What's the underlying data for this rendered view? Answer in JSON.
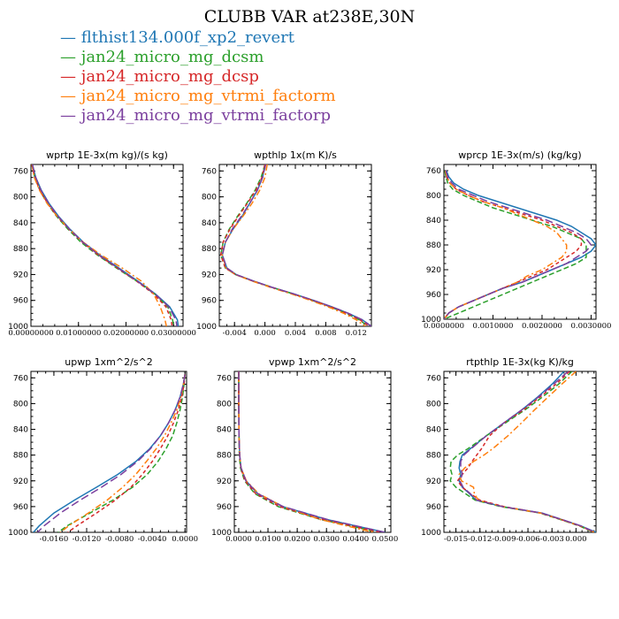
{
  "title": "CLUBB VAR at238E,30N",
  "series": [
    {
      "name": "flthist134.000f_xp2_revert",
      "color": "#1f77b4",
      "dash": ""
    },
    {
      "name": "jan24_micro_mg_dcsm",
      "color": "#2ca02c",
      "dash": "6,3"
    },
    {
      "name": "jan24_micro_mg_dcsp",
      "color": "#d62728",
      "dash": "4,3"
    },
    {
      "name": "jan24_micro_mg_vtrmi_factorm",
      "color": "#ff7f0e",
      "dash": "7,3,2,3"
    },
    {
      "name": "jan24_micro_mg_vtrmi_factorp",
      "color": "#7b3f9e",
      "dash": "9,4"
    }
  ],
  "chart_data": [
    {
      "type": "line",
      "title": "wprtp  1E-3x(m kg)/(s kg)",
      "ylabel": "",
      "xlabel": "",
      "ylim": [
        1000,
        750
      ],
      "xlim": [
        0,
        0.032
      ],
      "yticks": [
        760,
        800,
        840,
        880,
        920,
        960,
        1000
      ],
      "xticks": [
        0,
        0.01,
        0.02,
        0.03
      ],
      "xticklabels": [
        "0.00000000",
        "0.01000000",
        "0.02000000",
        "0.03000000"
      ],
      "y": [
        750,
        770,
        790,
        810,
        830,
        850,
        870,
        890,
        910,
        930,
        950,
        970,
        990,
        1000
      ],
      "series": [
        [
          0.0003,
          0.001,
          0.0022,
          0.0038,
          0.0058,
          0.0082,
          0.011,
          0.0145,
          0.0185,
          0.0225,
          0.0262,
          0.0292,
          0.0308,
          0.031
        ],
        [
          0.0002,
          0.0008,
          0.0019,
          0.0034,
          0.0054,
          0.0078,
          0.0105,
          0.014,
          0.018,
          0.0222,
          0.026,
          0.0288,
          0.0298,
          0.03
        ],
        [
          0.0002,
          0.0008,
          0.0019,
          0.0035,
          0.0055,
          0.008,
          0.0108,
          0.0142,
          0.0182,
          0.0222,
          0.0258,
          0.0284,
          0.0295,
          0.0297
        ],
        [
          0.0002,
          0.0007,
          0.0018,
          0.0034,
          0.0055,
          0.0081,
          0.011,
          0.0148,
          0.0192,
          0.0232,
          0.0258,
          0.0272,
          0.0282,
          0.0285
        ],
        [
          0.0003,
          0.001,
          0.0021,
          0.0037,
          0.0057,
          0.0081,
          0.0109,
          0.0143,
          0.0183,
          0.0223,
          0.0261,
          0.029,
          0.0305,
          0.0307
        ]
      ]
    },
    {
      "type": "line",
      "title": "wpthlp  1x(m K)/s",
      "ylabel": "",
      "xlabel": "",
      "ylim": [
        1000,
        750
      ],
      "xlim": [
        -0.006,
        0.014
      ],
      "yticks": [
        760,
        800,
        840,
        880,
        920,
        960,
        1000
      ],
      "xticks": [
        -0.004,
        0,
        0.004,
        0.008,
        0.012
      ],
      "xticklabels": [
        "-0.004",
        "0.000",
        "0.004",
        "0.008",
        "0.012"
      ],
      "y": [
        750,
        770,
        790,
        810,
        830,
        850,
        870,
        890,
        910,
        920,
        930,
        940,
        950,
        960,
        970,
        980,
        990,
        1000
      ],
      "series": [
        [
          0.0,
          -0.0003,
          -0.001,
          -0.002,
          -0.003,
          -0.0042,
          -0.0052,
          -0.0056,
          -0.005,
          -0.0038,
          -0.0015,
          0.001,
          0.0038,
          0.0064,
          0.0088,
          0.011,
          0.0128,
          0.014
        ],
        [
          0.0,
          -0.0005,
          -0.0013,
          -0.0024,
          -0.0036,
          -0.0047,
          -0.0055,
          -0.0058,
          -0.0052,
          -0.0039,
          -0.0016,
          0.001,
          0.0037,
          0.0062,
          0.0086,
          0.0107,
          0.0124,
          0.0136
        ],
        [
          0.0,
          -0.0004,
          -0.0012,
          -0.0023,
          -0.0035,
          -0.0046,
          -0.0055,
          -0.0058,
          -0.0052,
          -0.0039,
          -0.0016,
          0.001,
          0.0037,
          0.0063,
          0.0087,
          0.0108,
          0.0125,
          0.0137
        ],
        [
          0.0003,
          0.0,
          -0.0007,
          -0.0017,
          -0.0029,
          -0.0042,
          -0.0052,
          -0.0056,
          -0.0051,
          -0.0039,
          -0.0017,
          0.0008,
          0.0035,
          0.006,
          0.0083,
          0.0104,
          0.012,
          0.0132
        ],
        [
          0.0001,
          -0.0003,
          -0.001,
          -0.002,
          -0.0031,
          -0.0043,
          -0.0052,
          -0.0056,
          -0.005,
          -0.0038,
          -0.0015,
          0.001,
          0.0038,
          0.0064,
          0.0088,
          0.011,
          0.0128,
          0.014
        ]
      ]
    },
    {
      "type": "line",
      "title": "wprcp  1E-3x(m/s) (kg/kg)",
      "ylabel": "",
      "xlabel": "",
      "ylim": [
        1000,
        750
      ],
      "xlim": [
        0,
        0.0031
      ],
      "yticks": [
        760,
        800,
        840,
        880,
        920,
        960,
        1000
      ],
      "xticks": [
        0,
        0.001,
        0.002,
        0.003
      ],
      "xticklabels": [
        "0.0000000",
        "0.0010000",
        "0.0020000",
        "0.0030000"
      ],
      "y": [
        760,
        770,
        780,
        790,
        800,
        810,
        820,
        830,
        840,
        850,
        860,
        870,
        880,
        890,
        900,
        910,
        920,
        930,
        940,
        950,
        960,
        970,
        980,
        990,
        1000
      ],
      "series": [
        [
          5e-05,
          0.0001,
          0.0002,
          0.0004,
          0.0007,
          0.0011,
          0.0015,
          0.0019,
          0.0023,
          0.0026,
          0.0028,
          0.003,
          0.0031,
          0.003,
          0.0028,
          0.0025,
          0.0022,
          0.0019,
          0.0016,
          0.0012,
          0.0009,
          0.0006,
          0.0003,
          0.0001,
          0.0
        ],
        [
          2e-05,
          4e-05,
          8e-05,
          0.00018,
          0.0004,
          0.0007,
          0.001,
          0.0014,
          0.0018,
          0.0022,
          0.0025,
          0.0028,
          0.0029,
          0.0029,
          0.0029,
          0.0027,
          0.0024,
          0.0021,
          0.0018,
          0.0015,
          0.0012,
          0.0009,
          0.0006,
          0.0003,
          0.0
        ],
        [
          3e-05,
          6e-05,
          0.00012,
          0.00025,
          0.0005,
          0.0008,
          0.0012,
          0.0016,
          0.002,
          0.0023,
          0.0026,
          0.0028,
          0.0028,
          0.0027,
          0.0025,
          0.0023,
          0.0021,
          0.0018,
          0.0015,
          0.0012,
          0.0009,
          0.0006,
          0.0003,
          0.0001,
          0.0
        ],
        [
          3e-05,
          6e-05,
          0.00012,
          0.00025,
          0.0005,
          0.0008,
          0.0012,
          0.0015,
          0.0018,
          0.0021,
          0.0023,
          0.0024,
          0.0025,
          0.0025,
          0.0024,
          0.0022,
          0.002,
          0.0017,
          0.0015,
          0.0012,
          0.0009,
          0.0006,
          0.0003,
          0.0001,
          0.0
        ],
        [
          4e-05,
          8e-05,
          0.00016,
          0.0003,
          0.0006,
          0.0009,
          0.0013,
          0.0017,
          0.0021,
          0.0024,
          0.0027,
          0.0029,
          0.003,
          0.0029,
          0.0027,
          0.0025,
          0.0022,
          0.0019,
          0.0016,
          0.0012,
          0.0009,
          0.0006,
          0.0003,
          0.0001,
          0.0
        ]
      ]
    },
    {
      "type": "line",
      "title": "upwp  1xm^2/s^2",
      "ylabel": "",
      "xlabel": "",
      "ylim": [
        1000,
        750
      ],
      "xlim": [
        -0.0188,
        0.0002
      ],
      "yticks": [
        760,
        800,
        840,
        880,
        920,
        960,
        1000
      ],
      "xticks": [
        -0.016,
        -0.012,
        -0.008,
        -0.004,
        0
      ],
      "xticklabels": [
        "-0.0160",
        "-0.0120",
        "-0.0080",
        "-0.0040",
        "0.0000"
      ],
      "y": [
        755,
        770,
        790,
        810,
        830,
        850,
        870,
        890,
        910,
        930,
        950,
        970,
        990,
        1000
      ],
      "series": [
        [
          0.0,
          -0.0002,
          -0.0006,
          -0.0012,
          -0.002,
          -0.003,
          -0.0043,
          -0.006,
          -0.0082,
          -0.0108,
          -0.0135,
          -0.016,
          -0.0178,
          -0.0185
        ],
        [
          0.0,
          -0.0001,
          -0.0003,
          -0.0006,
          -0.001,
          -0.0015,
          -0.0023,
          -0.0033,
          -0.0046,
          -0.0064,
          -0.0088,
          -0.0116,
          -0.0144,
          -0.0155
        ],
        [
          0.0,
          -0.0001,
          -0.0004,
          -0.0008,
          -0.0014,
          -0.0021,
          -0.003,
          -0.004,
          -0.0052,
          -0.0066,
          -0.0085,
          -0.0108,
          -0.0132,
          -0.0143
        ],
        [
          0.0,
          -0.0002,
          -0.0005,
          -0.001,
          -0.0017,
          -0.0025,
          -0.0035,
          -0.0047,
          -0.006,
          -0.0076,
          -0.0095,
          -0.0118,
          -0.0142,
          -0.0152
        ],
        [
          0.0,
          -0.0002,
          -0.0006,
          -0.0012,
          -0.002,
          -0.003,
          -0.0042,
          -0.0058,
          -0.0078,
          -0.0102,
          -0.0128,
          -0.0152,
          -0.0172,
          -0.018
        ]
      ]
    },
    {
      "type": "line",
      "title": "vpwp  1xm^2/s^2",
      "ylabel": "",
      "xlabel": "",
      "ylim": [
        1000,
        750
      ],
      "xlim": [
        -0.0015,
        0.052
      ],
      "yticks": [
        760,
        800,
        840,
        880,
        920,
        960,
        1000
      ],
      "xticks": [
        0,
        0.01,
        0.02,
        0.03,
        0.04,
        0.05
      ],
      "xticklabels": [
        "0.0000",
        "0.0100",
        "0.0200",
        "0.0300",
        "0.0400",
        "0.0500"
      ],
      "y": [
        750,
        800,
        850,
        880,
        900,
        920,
        940,
        960,
        980,
        1000
      ],
      "series": [
        [
          0.0,
          0.0,
          0.0001,
          0.0003,
          0.0008,
          0.0025,
          0.0065,
          0.015,
          0.03,
          0.05
        ],
        [
          0.0,
          0.0,
          0.0001,
          0.0002,
          0.0006,
          0.002,
          0.0055,
          0.0135,
          0.028,
          0.048
        ],
        [
          0.0,
          0.0,
          0.0001,
          0.0003,
          0.0007,
          0.0022,
          0.0058,
          0.014,
          0.0285,
          0.0485
        ],
        [
          0.0,
          0.0,
          0.0001,
          0.0003,
          0.0008,
          0.0026,
          0.0068,
          0.0152,
          0.0278,
          0.046
        ],
        [
          0.0,
          0.0,
          0.0001,
          0.0003,
          0.0008,
          0.0025,
          0.0065,
          0.0152,
          0.0302,
          0.05
        ]
      ]
    },
    {
      "type": "line",
      "title": "rtpthlp  1E-3x(kg K)/kg",
      "ylabel": "",
      "xlabel": "",
      "ylim": [
        1000,
        750
      ],
      "xlim": [
        -0.0165,
        0.0025
      ],
      "yticks": [
        760,
        800,
        840,
        880,
        920,
        960,
        1000
      ],
      "xticks": [
        -0.015,
        -0.012,
        -0.009,
        -0.006,
        -0.003,
        0
      ],
      "xticklabels": [
        "-0.015",
        "-0.012",
        "-0.009",
        "-0.006",
        "-0.003",
        "0.000"
      ],
      "y": [
        750,
        770,
        790,
        810,
        830,
        850,
        870,
        880,
        890,
        900,
        910,
        920,
        930,
        940,
        950,
        960,
        970,
        980,
        990,
        1000
      ],
      "series": [
        [
          -0.0015,
          -0.003,
          -0.0048,
          -0.0068,
          -0.009,
          -0.0112,
          -0.0132,
          -0.0142,
          -0.0145,
          -0.0146,
          -0.0144,
          -0.0146,
          -0.0142,
          -0.0133,
          -0.0125,
          -0.0092,
          -0.0042,
          -0.0018,
          0.0006,
          0.0025
        ],
        [
          -0.0005,
          -0.0022,
          -0.0042,
          -0.0064,
          -0.0088,
          -0.0112,
          -0.0135,
          -0.0148,
          -0.0156,
          -0.0157,
          -0.0155,
          -0.0157,
          -0.015,
          -0.0138,
          -0.0126,
          -0.0094,
          -0.0045,
          -0.002,
          0.0004,
          0.0022
        ],
        [
          -0.0008,
          -0.0025,
          -0.0045,
          -0.0066,
          -0.009,
          -0.0108,
          -0.0118,
          -0.0124,
          -0.013,
          -0.0135,
          -0.0142,
          -0.0148,
          -0.0142,
          -0.0132,
          -0.012,
          -0.009,
          -0.0044,
          -0.0019,
          0.0005,
          0.0023
        ],
        [
          0.0,
          -0.0018,
          -0.0035,
          -0.0052,
          -0.0068,
          -0.0085,
          -0.0104,
          -0.0115,
          -0.0128,
          -0.0139,
          -0.0146,
          -0.0143,
          -0.0128,
          -0.0127,
          -0.0122,
          -0.0092,
          -0.0044,
          -0.0019,
          0.0005,
          0.0023
        ],
        [
          -0.001,
          -0.0028,
          -0.0047,
          -0.0068,
          -0.009,
          -0.0112,
          -0.0131,
          -0.014,
          -0.0144,
          -0.0144,
          -0.0142,
          -0.0145,
          -0.0141,
          -0.0132,
          -0.0124,
          -0.0092,
          -0.0043,
          -0.0018,
          0.0006,
          0.0024
        ]
      ]
    }
  ]
}
